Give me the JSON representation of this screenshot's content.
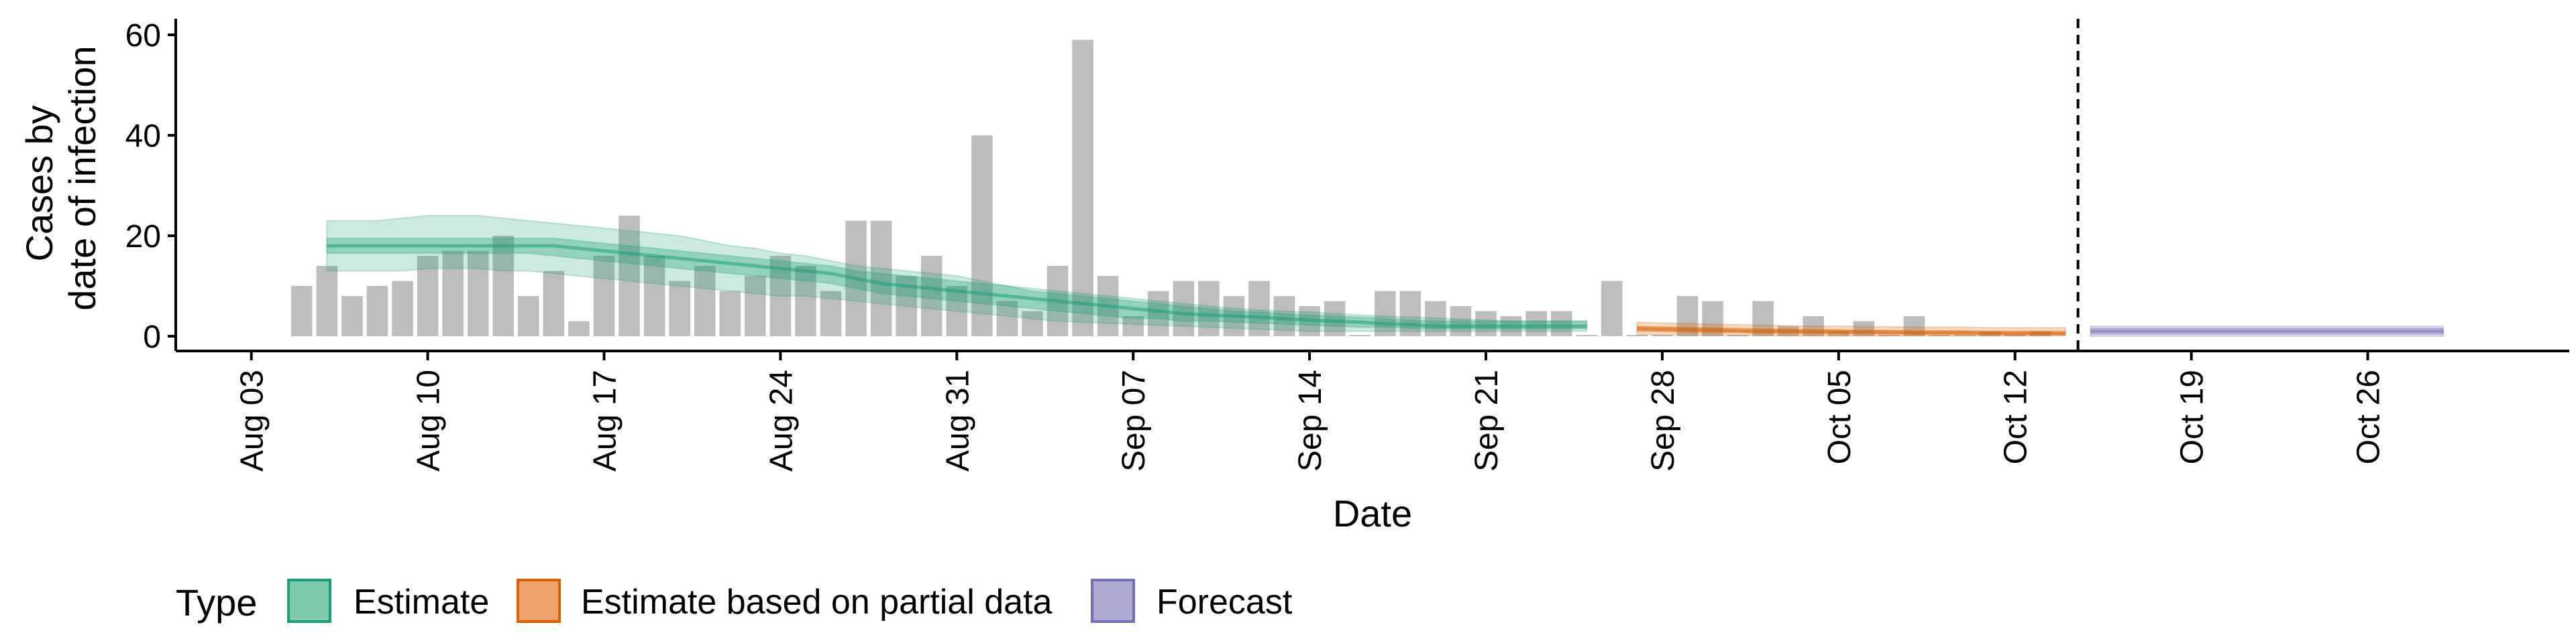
{
  "chart_data": {
    "type": "bar",
    "xlabel": "Date",
    "ylabel_lines": [
      "Cases by",
      "date of infection"
    ],
    "ylim": [
      0,
      60
    ],
    "yticks": [
      0,
      20,
      40,
      60
    ],
    "x_range": [
      "2020-07-31",
      "2020-11-03"
    ],
    "xticks": [
      {
        "date": "2020-08-03",
        "label": "Aug 03"
      },
      {
        "date": "2020-08-10",
        "label": "Aug 10"
      },
      {
        "date": "2020-08-17",
        "label": "Aug 17"
      },
      {
        "date": "2020-08-24",
        "label": "Aug 24"
      },
      {
        "date": "2020-08-31",
        "label": "Aug 31"
      },
      {
        "date": "2020-09-07",
        "label": "Sep 07"
      },
      {
        "date": "2020-09-14",
        "label": "Sep 14"
      },
      {
        "date": "2020-09-21",
        "label": "Sep 21"
      },
      {
        "date": "2020-09-28",
        "label": "Sep 28"
      },
      {
        "date": "2020-10-05",
        "label": "Oct 05"
      },
      {
        "date": "2020-10-12",
        "label": "Oct 12"
      },
      {
        "date": "2020-10-19",
        "label": "Oct 19"
      },
      {
        "date": "2020-10-26",
        "label": "Oct 26"
      }
    ],
    "grid": false,
    "bar_color": "#bdbdbd",
    "bars": {
      "start_date": "2020-08-05",
      "values": [
        10,
        14,
        8,
        10,
        11,
        16,
        17,
        17,
        20,
        8,
        13,
        3,
        16,
        24,
        16,
        11,
        14,
        9,
        12,
        16,
        14,
        9,
        23,
        23,
        12,
        16,
        10,
        40,
        7,
        5,
        14,
        59,
        12,
        4,
        9,
        11,
        11,
        8,
        11,
        8,
        6,
        7,
        0,
        9,
        9,
        7,
        6,
        5,
        4,
        5,
        5,
        0,
        11,
        0,
        0,
        8,
        7,
        0,
        7,
        2,
        4,
        1,
        3,
        0,
        4,
        0,
        0,
        1,
        0,
        1
      ]
    },
    "vline": {
      "date": "2020-10-14",
      "style": "dashed"
    },
    "legend": {
      "title": "Type",
      "position": "bottom-left",
      "entries": [
        {
          "label": "Estimate",
          "fill": "#7fc9ac",
          "stroke": "#1b9e77"
        },
        {
          "label": "Estimate based on partial data",
          "fill": "#eda36b",
          "stroke": "#d95f02"
        },
        {
          "label": "Forecast",
          "fill": "#aeaad3",
          "stroke": "#7570b3"
        }
      ]
    },
    "series": [
      {
        "name": "Estimate",
        "color": "#1b9e77",
        "start_date": "2020-08-06",
        "median": [
          18,
          18,
          18,
          18,
          18,
          18,
          18,
          18,
          18,
          18,
          17.5,
          17,
          16.5,
          16,
          15.5,
          15,
          14.5,
          14,
          13.5,
          13,
          12.5,
          11.5,
          10.5,
          10,
          9.5,
          9,
          8.5,
          8,
          7.5,
          7,
          6.5,
          6,
          5.5,
          5,
          4.5,
          4.2,
          4,
          3.8,
          3.5,
          3.2,
          3,
          2.8,
          2.5,
          2.3,
          2,
          2,
          2,
          2,
          2,
          2,
          2
        ],
        "lower90": [
          13,
          13,
          13,
          13,
          13.5,
          13.5,
          13.5,
          13,
          13,
          12.5,
          12,
          11.5,
          11,
          10.5,
          10,
          9.5,
          9,
          8.5,
          8,
          8,
          7.5,
          7,
          6.5,
          6,
          5.5,
          5,
          4.5,
          4,
          3.5,
          3,
          2.8,
          2.6,
          2.4,
          2.2,
          2,
          1.8,
          1.6,
          1.4,
          1.2,
          1,
          1,
          1,
          1,
          1,
          1,
          1,
          1,
          1,
          1,
          1,
          1
        ],
        "upper90": [
          23,
          23,
          23,
          23.5,
          24,
          24,
          24,
          23.5,
          23,
          22.5,
          22,
          21.5,
          21,
          20.5,
          20,
          19,
          18,
          17.5,
          16.5,
          16,
          15,
          14,
          13.5,
          13,
          12.5,
          12,
          11,
          10,
          9.5,
          9,
          8.5,
          8,
          7.5,
          7,
          6.5,
          6,
          5.5,
          5.2,
          5,
          4.8,
          4.5,
          4.2,
          4,
          3.8,
          3.6,
          3.4,
          3.2,
          3,
          3,
          3,
          3
        ],
        "lower50": [
          16.5,
          16.5,
          16.5,
          16.5,
          16.5,
          16.5,
          16.5,
          16.5,
          16.5,
          16,
          15.5,
          15,
          14.5,
          14,
          13.5,
          13,
          12.5,
          12,
          11.5,
          11,
          10.5,
          9.5,
          8.5,
          8,
          7.5,
          7,
          6.5,
          6,
          5.5,
          5,
          4.5,
          4,
          3.5,
          3.5,
          3,
          3,
          2.8,
          2.6,
          2.4,
          2.2,
          2,
          1.8,
          1.8,
          1.6,
          1.5,
          1.5,
          1.5,
          1.5,
          1.5,
          1.5,
          1.5
        ],
        "upper50": [
          19.5,
          19.5,
          19.5,
          19.5,
          19.5,
          19.5,
          19.5,
          19.5,
          19.5,
          19.5,
          19,
          18.5,
          18,
          17.5,
          17,
          16.5,
          16,
          15.5,
          15,
          14.5,
          14,
          13,
          12.5,
          12,
          11.5,
          11,
          10.5,
          10,
          9,
          8.5,
          8,
          7.5,
          7,
          6.5,
          6,
          5.5,
          5,
          4.8,
          4.5,
          4.2,
          4,
          3.8,
          3.5,
          3.2,
          3,
          3,
          3,
          3,
          3,
          3,
          3
        ]
      },
      {
        "name": "Estimate based on partial data",
        "color": "#d95f02",
        "start_date": "2020-09-27",
        "median": [
          1.5,
          1.4,
          1.3,
          1.2,
          1.1,
          1.0,
          1.0,
          0.9,
          0.9,
          0.8,
          0.8,
          0.7,
          0.7,
          0.7,
          0.6,
          0.6,
          0.6,
          0.5
        ],
        "lower90": [
          0.3,
          0.3,
          0.2,
          0.2,
          0.2,
          0.2,
          0.1,
          0.1,
          0.1,
          0.1,
          0.1,
          0.1,
          0.1,
          0.1,
          0.1,
          0.1,
          0.1,
          0.1
        ],
        "upper90": [
          2.8,
          2.6,
          2.5,
          2.4,
          2.3,
          2.2,
          2.1,
          2.0,
          2.0,
          1.9,
          1.9,
          1.8,
          1.8,
          1.8,
          1.7,
          1.7,
          1.7,
          1.7
        ],
        "lower50": [
          1.0,
          0.9,
          0.8,
          0.7,
          0.7,
          0.6,
          0.6,
          0.5,
          0.5,
          0.5,
          0.4,
          0.4,
          0.4,
          0.4,
          0.3,
          0.3,
          0.3,
          0.3
        ],
        "upper50": [
          2.0,
          1.9,
          1.8,
          1.7,
          1.6,
          1.5,
          1.4,
          1.3,
          1.3,
          1.2,
          1.2,
          1.1,
          1.1,
          1.1,
          1.0,
          1.0,
          1.0,
          1.0
        ]
      },
      {
        "name": "Forecast",
        "color": "#7570b3",
        "start_date": "2020-10-15",
        "median": [
          1,
          1,
          1,
          1,
          1,
          1,
          1,
          1,
          1,
          1,
          1,
          1,
          1,
          1,
          1
        ],
        "lower90": [
          0,
          0,
          0,
          0,
          0,
          0,
          0,
          0,
          0,
          0,
          0,
          0,
          0,
          0,
          0
        ],
        "upper90": [
          2,
          2,
          2,
          2,
          2,
          2,
          2,
          2,
          2,
          2,
          2,
          2,
          2,
          2,
          2
        ],
        "lower50": [
          0.4,
          0.4,
          0.4,
          0.4,
          0.4,
          0.4,
          0.4,
          0.4,
          0.4,
          0.4,
          0.4,
          0.4,
          0.4,
          0.4,
          0.4
        ],
        "upper50": [
          1.6,
          1.6,
          1.6,
          1.6,
          1.6,
          1.6,
          1.6,
          1.6,
          1.6,
          1.6,
          1.6,
          1.6,
          1.6,
          1.6,
          1.6
        ]
      }
    ]
  }
}
